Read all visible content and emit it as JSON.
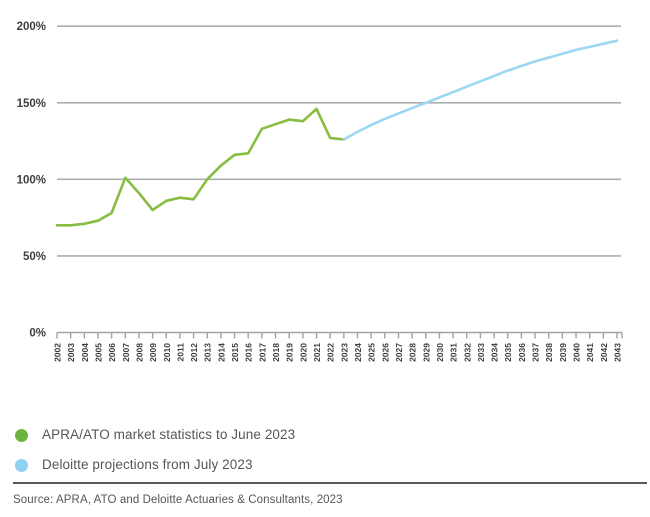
{
  "chart_data": {
    "type": "line",
    "x_years": [
      2002,
      2003,
      2004,
      2005,
      2006,
      2007,
      2008,
      2009,
      2010,
      2011,
      2012,
      2013,
      2014,
      2015,
      2016,
      2017,
      2018,
      2019,
      2020,
      2021,
      2022,
      2023,
      2024,
      2025,
      2026,
      2027,
      2028,
      2029,
      2030,
      2031,
      2032,
      2033,
      2034,
      2035,
      2036,
      2037,
      2038,
      2039,
      2040,
      2041,
      2042,
      2043
    ],
    "series": [
      {
        "name": "APRA/ATO market statistics to June 2023",
        "color": "#87bd40",
        "start_year": 2002,
        "values": [
          70,
          70,
          71,
          73,
          78,
          101,
          91,
          80,
          86,
          88,
          87,
          100,
          109,
          116,
          117,
          133,
          136,
          139,
          138,
          146,
          127,
          126
        ]
      },
      {
        "name": "Deloitte projections from July 2023",
        "color": "#9cd7f4",
        "start_year": 2023,
        "values": [
          126,
          131,
          135.5,
          139.5,
          143,
          146.5,
          150,
          153.5,
          157,
          160.5,
          164,
          167.5,
          171,
          174,
          177,
          179.5,
          182,
          184.5,
          186.5,
          188.5,
          190.5
        ]
      }
    ],
    "ylim": [
      0,
      200
    ],
    "yticks": [
      0,
      50,
      100,
      150,
      200
    ],
    "ytick_labels": [
      "0%",
      "50%",
      "100%",
      "150%",
      "200%"
    ],
    "xlabel": "",
    "ylabel": "",
    "grid": "horizontal",
    "grid_color": "#aeaeae",
    "axis_color": "#a2a2a2",
    "tick_label_color": "#3d3e40",
    "legend_position": "bottom-left"
  },
  "legend": {
    "items": [
      {
        "label": "APRA/ATO market statistics to June 2023",
        "color": "#6cb43e"
      },
      {
        "label": "Deloitte projections from July 2023",
        "color": "#8dd0f1"
      }
    ]
  },
  "source": {
    "text": "Source: APRA, ATO and Deloitte Actuaries & Consultants, 2023"
  }
}
